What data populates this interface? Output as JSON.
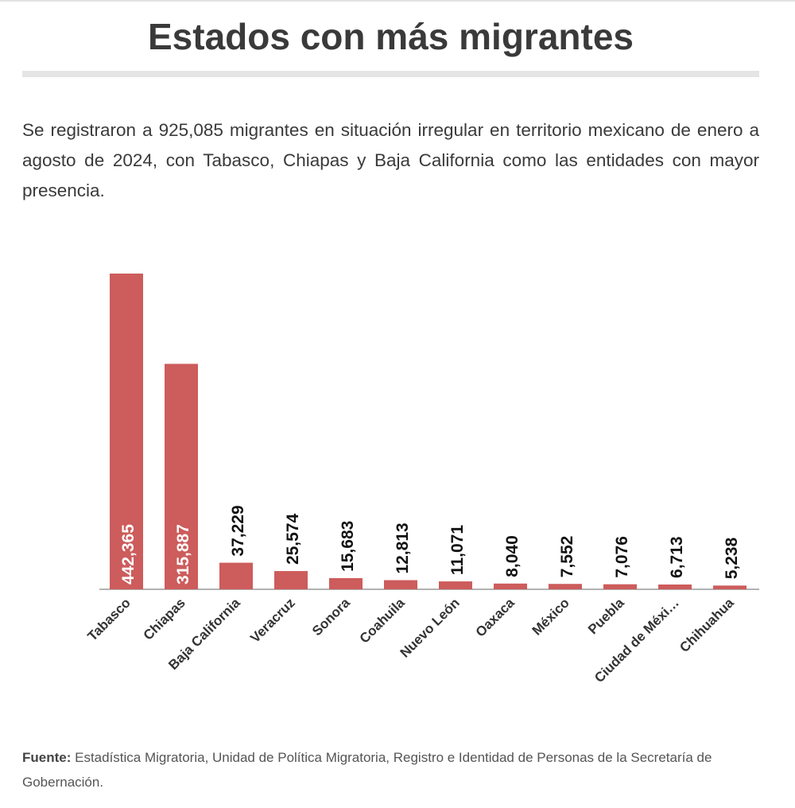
{
  "header": {
    "title": "Estados con más migrantes",
    "subtitle": "Se registraron a 925,085 migrantes en situación irregular en territorio mexicano de enero a agosto de 2024, con Tabasco, Chiapas y Baja California como las entidades con mayor presencia."
  },
  "footer": {
    "source_label": "Fuente:",
    "source_text": " Estadística Migratoria, Unidad de Política Migratoria, Registro e Identidad de Personas de la Secretaría de Gobernación."
  },
  "chart_data": {
    "type": "bar",
    "title": "Estados con más migrantes",
    "xlabel": "",
    "ylabel": "",
    "categories": [
      "Tabasco",
      "Chiapas",
      "Baja California",
      "Veracruz",
      "Sonora",
      "Coahuila",
      "Nuevo León",
      "Oaxaca",
      "México",
      "Puebla",
      "Ciudad de Méxi…",
      "Chihuahua"
    ],
    "values": [
      442365,
      315887,
      37229,
      25574,
      15683,
      12813,
      11071,
      8040,
      7552,
      7076,
      6713,
      5238
    ],
    "value_labels": [
      "442,365",
      "315,887",
      "37,229",
      "25,574",
      "15,683",
      "12,813",
      "11,071",
      "8,040",
      "7,552",
      "7,076",
      "6,713",
      "5,238"
    ],
    "ylim": [
      0,
      442365
    ],
    "grid": false,
    "legend": "none",
    "bar_color": "#cd5c5c",
    "inside_label_color": "#ffffff",
    "outside_label_color": "#111111",
    "axis_color": "#999999"
  }
}
